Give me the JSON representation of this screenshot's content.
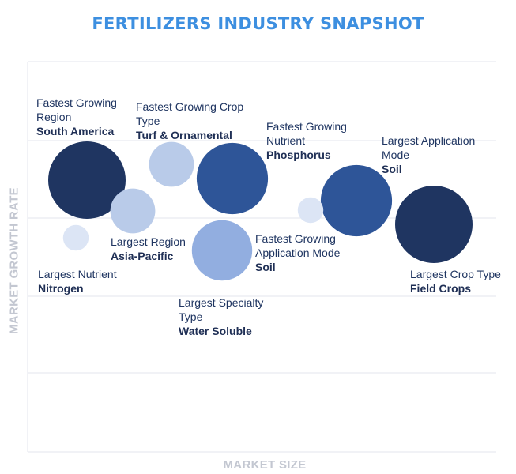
{
  "chart_data": {
    "type": "scatter",
    "title": "FERTILIZERS INDUSTRY SNAPSHOT",
    "xlabel": "MARKET SIZE",
    "ylabel": "MARKET GROWTH RATE",
    "grid": true,
    "points": [
      {
        "category": "Fastest Growing Region",
        "value": "South America",
        "color": "#1f3561",
        "size": 1.0
      },
      {
        "category": "Fastest Growing Crop Type",
        "value": "Turf & Ornamental",
        "color": "#b9cbe9",
        "size": 0.58
      },
      {
        "category": "Fastest Growing Nutrient",
        "value": "Phosphorus",
        "color": "#2e5598",
        "size": 0.92
      },
      {
        "category": "Largest Application Mode",
        "value": "Soil",
        "color": "#2e5598",
        "size": 0.92
      },
      {
        "category": "Largest Region",
        "value": "Asia-Pacific",
        "color": "#b9cbe9",
        "size": 0.58
      },
      {
        "category": "Largest Nutrient",
        "value": "Nitrogen",
        "color": "#dce5f5",
        "size": 0.33
      },
      {
        "category": "Largest Specialty Type",
        "value": "Water Soluble",
        "color": "#92aee0",
        "size": 0.78
      },
      {
        "category": "Fastest Growing Application Mode",
        "value": "Soil",
        "color": "#dce5f5",
        "size": 0.33
      },
      {
        "category": "Largest Crop Type",
        "value": "Field Crops",
        "color": "#1f3561",
        "size": 1.0
      }
    ]
  }
}
